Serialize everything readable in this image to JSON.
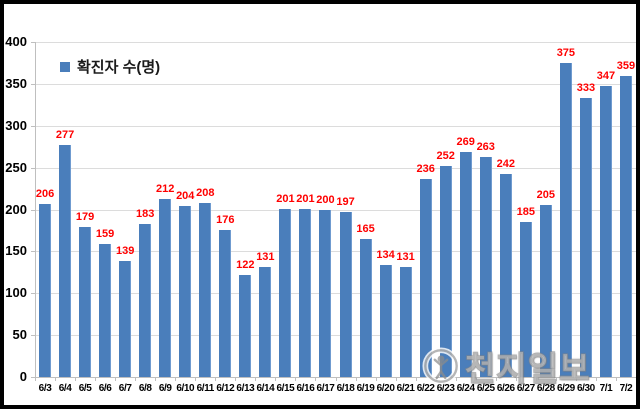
{
  "chart_data": {
    "type": "bar",
    "title": "",
    "legend": "확진자 수(명)",
    "legend_position": "top-left",
    "categories": [
      "6/3",
      "6/4",
      "6/5",
      "6/6",
      "6/7",
      "6/8",
      "6/9",
      "6/10",
      "6/11",
      "6/12",
      "6/13",
      "6/14",
      "6/15",
      "6/16",
      "6/17",
      "6/18",
      "6/19",
      "6/20",
      "6/21",
      "6/22",
      "6/23",
      "6/24",
      "6/25",
      "6/26",
      "6/27",
      "6/28",
      "6/29",
      "6/30",
      "7/1",
      "7/2"
    ],
    "values": [
      206,
      277,
      179,
      159,
      139,
      183,
      212,
      204,
      208,
      176,
      122,
      131,
      201,
      201,
      200,
      197,
      165,
      134,
      131,
      236,
      252,
      269,
      263,
      242,
      185,
      205,
      375,
      333,
      347,
      359
    ],
    "xlabel": "",
    "ylabel": "",
    "ylim": [
      0,
      400
    ],
    "yticks": [
      0,
      50,
      100,
      150,
      200,
      250,
      300,
      350,
      400
    ],
    "grid": true,
    "data_labels": true
  },
  "watermark": {
    "text": "천지일보",
    "logo": "person-in-circle"
  },
  "colors": {
    "background": "#ffffff",
    "frame_border": "#000000",
    "bar": "#4a7ebb",
    "data_label": "#ff0000",
    "gridline": "#dcdcdc",
    "axis": "#bfbfbf",
    "tick_label": "#000000"
  }
}
